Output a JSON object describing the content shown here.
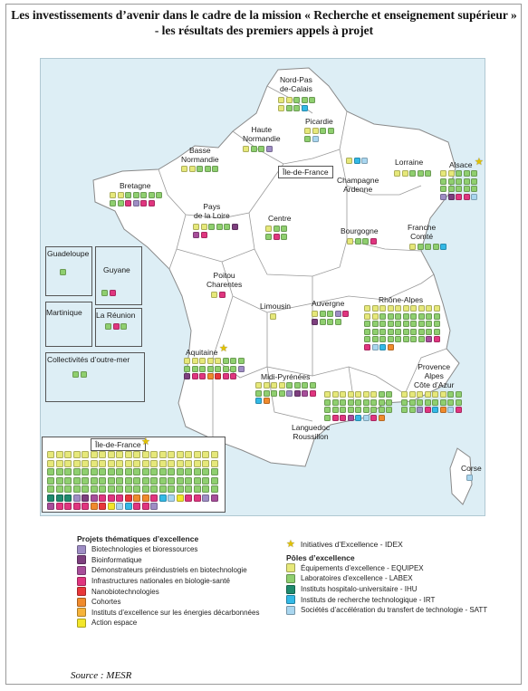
{
  "title": "Les investissements d’avenir dans le cadre de la mission « Recherche et enseignement supérieur » - les résultats des premiers appels à projet",
  "source": "Source : MESR",
  "colors": {
    "sea": "#ddeef5",
    "land": "#ffffff",
    "border": "#8a8a8a",
    "equipex": "#e6e87a",
    "labex": "#8fcf6f",
    "ihu": "#1f8a6e",
    "irt": "#33b9e6",
    "satt": "#a9d6ef",
    "idex_star": "#e2c200"
  },
  "regions": [
    {
      "name": "Nord-Pas-de-Calais",
      "label": "Nord-Pas\nde-Calais",
      "squares": [
        "equipex",
        "equipex",
        "labex",
        "labex",
        "labex",
        "equipex",
        "labex",
        "labex",
        "irt"
      ]
    },
    {
      "name": "Picardie",
      "label": "Picardie",
      "squares": [
        "equipex",
        "equipex",
        "labex",
        "labex",
        "labex",
        "satt"
      ]
    },
    {
      "name": "Haute Normandie",
      "label": "Haute\nNormandie",
      "squares": [
        "equipex",
        "labex",
        "labex",
        "bio"
      ]
    },
    {
      "name": "Basse Normandie",
      "label": "Basse\nNormandie",
      "squares": [
        "equipex",
        "equipex",
        "labex",
        "labex",
        "labex"
      ]
    },
    {
      "name": "Île-de-France label",
      "label": "Île-de-France",
      "squares": []
    },
    {
      "name": "Champagne Ardenne",
      "label": "Champagne\nArdenne",
      "squares": [
        "equipex",
        "irt",
        "satt"
      ]
    },
    {
      "name": "Lorraine",
      "label": "Lorraine",
      "squares": [
        "equipex",
        "equipex",
        "labex",
        "labex",
        "labex"
      ]
    },
    {
      "name": "Alsace",
      "label": "Alsace",
      "squares": [
        "equipex",
        "equipex",
        "labex",
        "labex",
        "labex",
        "labex",
        "labex",
        "labex",
        "labex",
        "labex",
        "labex",
        "labex",
        "labex",
        "labex",
        "labex",
        "bio",
        "bioinfo",
        "infra",
        "infra",
        "satt"
      ]
    },
    {
      "name": "Bretagne",
      "label": "Bretagne",
      "squares": [
        "equipex",
        "equipex",
        "labex",
        "labex",
        "labex",
        "labex",
        "labex",
        "labex",
        "labex",
        "infra",
        "bio",
        "infra",
        "infra"
      ]
    },
    {
      "name": "Pays de la Loire",
      "label": "Pays\nde la Loire",
      "squares": [
        "equipex",
        "equipex",
        "labex",
        "labex",
        "labex",
        "bioinfo",
        "demo",
        "infra"
      ]
    },
    {
      "name": "Centre",
      "label": "Centre",
      "squares": [
        "equipex",
        "labex",
        "labex",
        "labex",
        "infra",
        "labex"
      ]
    },
    {
      "name": "Bourgogne",
      "label": "Bourgogne",
      "squares": [
        "equipex",
        "labex",
        "labex",
        "infra"
      ]
    },
    {
      "name": "Franche Comté",
      "label": "Franche\nComté",
      "squares": [
        "equipex",
        "labex",
        "labex",
        "labex",
        "irt"
      ]
    },
    {
      "name": "Poitou Charentes",
      "label": "Poitou\nCharentes",
      "squares": [
        "equipex",
        "infra"
      ]
    },
    {
      "name": "Limousin",
      "label": "Limousin",
      "squares": [
        "equipex"
      ]
    },
    {
      "name": "Auvergne",
      "label": "Auvergne",
      "squares": [
        "equipex",
        "labex",
        "labex",
        "bio",
        "infra",
        "bioinfo",
        "labex",
        "labex",
        "labex"
      ]
    },
    {
      "name": "Rhône-Alpes",
      "label": "Rhône-Alpes",
      "squares": [
        "equipex",
        "equipex",
        "equipex",
        "equipex",
        "equipex",
        "equipex",
        "equipex",
        "equipex",
        "equipex",
        "equipex",
        "equipex",
        "equipex",
        "labex",
        "labex",
        "labex",
        "labex",
        "labex",
        "labex",
        "labex",
        "labex",
        "labex",
        "labex",
        "labex",
        "labex",
        "labex",
        "labex",
        "labex",
        "labex",
        "labex",
        "labex",
        "labex",
        "labex",
        "labex",
        "labex",
        "labex",
        "labex",
        "labex",
        "labex",
        "labex",
        "labex",
        "labex",
        "labex",
        "labex",
        "labex",
        "labex",
        "labex",
        "labex",
        "labex",
        "demo",
        "infra",
        "infra",
        "satt",
        "irt",
        "coh"
      ]
    },
    {
      "name": "Aquitaine",
      "label": "Aquitaine",
      "squares": [
        "equipex",
        "equipex",
        "equipex",
        "equipex",
        "equipex",
        "labex",
        "labex",
        "labex",
        "labex",
        "labex",
        "labex",
        "labex",
        "labex",
        "labex",
        "labex",
        "bio",
        "bioinfo",
        "infra",
        "infra",
        "coh",
        "nano",
        "infra",
        "infra"
      ]
    },
    {
      "name": "Midi-Pyrénées",
      "label": "Midi-Pyrénées",
      "squares": [
        "equipex",
        "equipex",
        "equipex",
        "equipex",
        "labex",
        "labex",
        "labex",
        "labex",
        "labex",
        "labex",
        "labex",
        "labex",
        "bio",
        "bioinfo",
        "demo",
        "infra",
        "irt",
        "coh"
      ]
    },
    {
      "name": "Languedoc Roussillon",
      "label": "Languedoc\nRoussillon",
      "squares": [
        "equipex",
        "equipex",
        "equipex",
        "equipex",
        "equipex",
        "equipex",
        "equipex",
        "labex",
        "labex",
        "labex",
        "labex",
        "labex",
        "labex",
        "labex",
        "labex",
        "labex",
        "labex",
        "labex",
        "labex",
        "labex",
        "labex",
        "labex",
        "labex",
        "labex",
        "labex",
        "labex",
        "labex",
        "labex",
        "infra",
        "infra",
        "demo",
        "irt",
        "satt",
        "infra",
        "coh"
      ]
    },
    {
      "name": "Provence Alpes Côte d'Azur",
      "label": "Provence\nAlpes\nCôte d’Azur",
      "squares": [
        "equipex",
        "equipex",
        "equipex",
        "equipex",
        "equipex",
        "equipex",
        "labex",
        "labex",
        "labex",
        "labex",
        "labex",
        "labex",
        "labex",
        "labex",
        "labex",
        "labex",
        "labex",
        "labex",
        "bio",
        "infra",
        "irt",
        "coh",
        "satt",
        "infra"
      ]
    },
    {
      "name": "Corse",
      "label": "Corse",
      "squares": [
        "satt"
      ]
    },
    {
      "name": "Guadeloupe",
      "label": "Guadeloupe",
      "squares": [
        "labex"
      ]
    },
    {
      "name": "Guyane",
      "label": "Guyane",
      "squares": [
        "labex",
        "infra"
      ]
    },
    {
      "name": "Martinique",
      "label": "Martinique",
      "squares": []
    },
    {
      "name": "La Réunion",
      "label": "La Réunion",
      "squares": [
        "labex",
        "infra",
        "labex"
      ]
    },
    {
      "name": "Collectivités d'outre-mer",
      "label": "Collectivités d’outre-mer",
      "squares": [
        "labex",
        "labex"
      ]
    }
  ],
  "idf_inset": {
    "label": "Île-de-France",
    "squares": [
      "equipex",
      "equipex",
      "equipex",
      "equipex",
      "equipex",
      "equipex",
      "equipex",
      "equipex",
      "equipex",
      "equipex",
      "equipex",
      "equipex",
      "equipex",
      "equipex",
      "equipex",
      "equipex",
      "equipex",
      "equipex",
      "equipex",
      "equipex",
      "equipex",
      "equipex",
      "equipex",
      "equipex",
      "equipex",
      "equipex",
      "equipex",
      "equipex",
      "equipex",
      "equipex",
      "equipex",
      "equipex",
      "equipex",
      "equipex",
      "equipex",
      "equipex",
      "equipex",
      "equipex",
      "equipex",
      "equipex",
      "labex",
      "labex",
      "labex",
      "labex",
      "labex",
      "labex",
      "labex",
      "labex",
      "labex",
      "labex",
      "labex",
      "labex",
      "labex",
      "labex",
      "labex",
      "labex",
      "labex",
      "labex",
      "labex",
      "labex",
      "labex",
      "labex",
      "labex",
      "labex",
      "labex",
      "labex",
      "labex",
      "labex",
      "labex",
      "labex",
      "labex",
      "labex",
      "labex",
      "labex",
      "labex",
      "labex",
      "labex",
      "labex",
      "labex",
      "labex",
      "labex",
      "labex",
      "labex",
      "labex",
      "labex",
      "labex",
      "labex",
      "labex",
      "labex",
      "labex",
      "labex",
      "labex",
      "labex",
      "labex",
      "labex",
      "labex",
      "labex",
      "labex",
      "labex",
      "labex",
      "ihu",
      "ihu",
      "ihu",
      "bio",
      "bioinfo",
      "demo",
      "infra",
      "infra",
      "infra",
      "nano",
      "coh",
      "coh",
      "infra",
      "irt",
      "satt",
      "action",
      "infra",
      "infra",
      "bio",
      "demo",
      "demo",
      "infra",
      "infra",
      "infra",
      "infra",
      "coh",
      "nano",
      "action",
      "satt",
      "irt",
      "infra",
      "infra",
      "bio"
    ]
  },
  "legend": {
    "thematic_title": "Projets thématiques d’excellence",
    "thematic": [
      {
        "key": "bio",
        "label": "Biotechnologies et bioressources",
        "color": "#9e8dc4"
      },
      {
        "key": "bioinfo",
        "label": "Bioinformatique",
        "color": "#7d3f7e"
      },
      {
        "key": "demo",
        "label": "Démonstrateurs préindustriels en biotechnologie",
        "color": "#a74e9a"
      },
      {
        "key": "infra",
        "label": "Infrastructures nationales en biologie-santé",
        "color": "#e0357f"
      },
      {
        "key": "nano",
        "label": "Nanobiotechnologies",
        "color": "#e8373a"
      },
      {
        "key": "coh",
        "label": "Cohortes",
        "color": "#f08a2c"
      },
      {
        "key": "decarb",
        "label": "Instituts d’excellence sur les énergies décarbonnées",
        "color": "#f6b33a"
      },
      {
        "key": "action",
        "label": "Action espace",
        "color": "#f3e62a"
      }
    ],
    "idex_label": "Initiatives d’Excellence - IDEX",
    "poles_title": "Pôles d’excellence",
    "poles": [
      {
        "key": "equipex",
        "label": "Équipements d’excellence - EQUIPEX",
        "color": "#e6e87a"
      },
      {
        "key": "labex",
        "label": "Laboratoires d’excellence - LABEX",
        "color": "#8fcf6f"
      },
      {
        "key": "ihu",
        "label": "Instituts hospitalo-universitaire - IHU",
        "color": "#1f8a6e"
      },
      {
        "key": "irt",
        "label": "Instituts de recherche technologique - IRT",
        "color": "#33b9e6"
      },
      {
        "key": "satt",
        "label": "Sociétés d’accélération du transfert de technologie - SATT",
        "color": "#a9d6ef"
      }
    ]
  }
}
